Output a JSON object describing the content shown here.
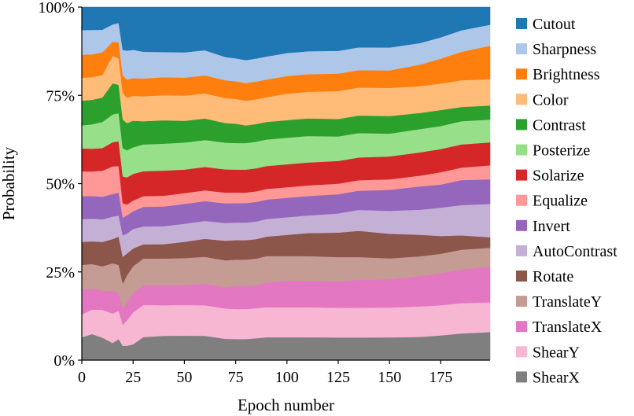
{
  "chart_data": {
    "type": "area",
    "stacked": true,
    "normalized": true,
    "xlabel": "Epoch number",
    "ylabel": "Probability",
    "xlim": [
      0,
      199
    ],
    "ylim": [
      0,
      100
    ],
    "x_ticks": [
      0,
      25,
      50,
      75,
      100,
      125,
      150,
      175
    ],
    "y_ticks": [
      0,
      25,
      50,
      75,
      100
    ],
    "y_tick_labels": [
      "0%",
      "25%",
      "50%",
      "75%",
      "100%"
    ],
    "x": [
      0,
      5,
      10,
      15,
      18,
      20,
      22,
      25,
      30,
      40,
      50,
      60,
      70,
      75,
      80,
      85,
      90,
      100,
      110,
      125,
      135,
      150,
      165,
      175,
      185,
      199
    ],
    "series": [
      {
        "name": "ShearX",
        "color": "#7f7f7f",
        "values": [
          6.5,
          7.5,
          6.5,
          5.0,
          6.0,
          4.0,
          4.0,
          4.5,
          6.5,
          6.8,
          6.8,
          6.8,
          6.0,
          6.0,
          6.0,
          6.2,
          6.5,
          6.5,
          6.5,
          6.5,
          6.5,
          6.5,
          6.5,
          7.0,
          7.5,
          8.0
        ]
      },
      {
        "name": "ShearY",
        "color": "#f7b6d2",
        "values": [
          6.5,
          7.0,
          8.0,
          8.5,
          8.0,
          6.0,
          7.0,
          9.0,
          9.0,
          8.5,
          8.5,
          8.5,
          8.5,
          8.5,
          8.5,
          8.5,
          8.5,
          8.5,
          8.5,
          8.5,
          8.5,
          8.5,
          8.5,
          8.5,
          8.5,
          8.5
        ]
      },
      {
        "name": "TranslateX",
        "color": "#e377c2",
        "values": [
          7.0,
          6.0,
          5.5,
          6.5,
          5.0,
          4.5,
          5.0,
          5.5,
          5.5,
          5.5,
          5.5,
          6.0,
          6.0,
          6.5,
          6.5,
          6.5,
          7.0,
          7.5,
          7.5,
          7.5,
          8.0,
          8.0,
          8.5,
          9.0,
          9.5,
          10.0
        ]
      },
      {
        "name": "TranslateY",
        "color": "#c49c94",
        "values": [
          7.0,
          7.0,
          7.0,
          8.0,
          8.0,
          7.0,
          7.5,
          7.5,
          7.5,
          7.5,
          7.5,
          7.5,
          7.5,
          7.5,
          7.5,
          7.5,
          7.5,
          7.0,
          7.0,
          7.0,
          6.5,
          6.0,
          5.5,
          5.5,
          5.5,
          5.5
        ]
      },
      {
        "name": "Rotate",
        "color": "#8c564b",
        "values": [
          6.5,
          6.5,
          7.0,
          7.0,
          8.0,
          7.5,
          6.0,
          5.0,
          4.0,
          4.0,
          4.5,
          5.0,
          5.5,
          5.5,
          5.5,
          5.5,
          5.5,
          6.0,
          6.5,
          7.0,
          7.5,
          7.0,
          6.0,
          5.0,
          4.0,
          3.0
        ]
      },
      {
        "name": "AutoContrast",
        "color": "#c5b0d5",
        "values": [
          6.5,
          6.5,
          6.5,
          6.5,
          6.0,
          6.0,
          5.5,
          5.5,
          5.0,
          5.0,
          5.0,
          5.0,
          5.0,
          5.0,
          5.0,
          5.0,
          5.0,
          5.0,
          5.0,
          5.5,
          6.0,
          6.5,
          7.0,
          8.0,
          8.5,
          9.5
        ]
      },
      {
        "name": "Invert",
        "color": "#9467bd",
        "values": [
          6.5,
          6.5,
          6.5,
          6.5,
          6.5,
          5.0,
          5.0,
          5.0,
          5.5,
          5.5,
          5.5,
          5.5,
          5.5,
          5.5,
          5.5,
          5.5,
          5.5,
          5.5,
          5.5,
          5.5,
          5.5,
          6.0,
          6.5,
          6.5,
          7.0,
          7.0
        ]
      },
      {
        "name": "Equalize",
        "color": "#ff9896",
        "values": [
          7.0,
          7.0,
          7.5,
          8.0,
          7.5,
          4.0,
          3.0,
          3.0,
          3.0,
          3.0,
          3.0,
          3.0,
          3.0,
          3.0,
          3.0,
          3.0,
          3.0,
          3.0,
          3.0,
          3.0,
          3.0,
          3.0,
          3.0,
          3.5,
          3.5,
          4.0
        ]
      },
      {
        "name": "Solarize",
        "color": "#d62728",
        "values": [
          6.5,
          6.5,
          6.5,
          7.0,
          7.0,
          7.5,
          7.5,
          7.5,
          7.0,
          7.0,
          6.5,
          6.5,
          6.5,
          6.5,
          6.5,
          6.5,
          6.5,
          6.5,
          6.5,
          6.5,
          6.5,
          6.5,
          6.5,
          6.5,
          6.5,
          6.5
        ]
      },
      {
        "name": "Posterize",
        "color": "#98df8a",
        "values": [
          6.5,
          7.0,
          7.5,
          8.0,
          8.0,
          8.0,
          7.5,
          7.5,
          7.5,
          7.5,
          7.5,
          7.5,
          7.5,
          7.5,
          7.5,
          7.5,
          7.5,
          7.5,
          7.5,
          7.0,
          7.0,
          6.5,
          6.5,
          6.5,
          6.5,
          6.5
        ]
      },
      {
        "name": "Contrast",
        "color": "#2ca02c",
        "values": [
          7.0,
          7.0,
          7.0,
          9.0,
          8.0,
          8.0,
          7.5,
          7.5,
          6.5,
          6.5,
          6.0,
          6.0,
          5.5,
          5.5,
          5.0,
          5.0,
          5.0,
          5.0,
          5.0,
          5.0,
          5.0,
          5.0,
          4.5,
          4.5,
          4.0,
          4.0
        ]
      },
      {
        "name": "Color",
        "color": "#ffbb78",
        "values": [
          6.5,
          6.5,
          6.5,
          8.0,
          7.5,
          7.5,
          7.0,
          7.0,
          7.0,
          7.0,
          7.0,
          7.0,
          7.0,
          7.0,
          7.0,
          7.0,
          7.0,
          7.5,
          7.5,
          8.0,
          8.0,
          8.0,
          7.5,
          7.5,
          7.5,
          7.5
        ]
      },
      {
        "name": "Brightness",
        "color": "#ff7f0e",
        "values": [
          6.5,
          6.5,
          6.5,
          4.0,
          4.5,
          5.0,
          5.0,
          5.0,
          5.0,
          5.0,
          5.0,
          5.0,
          5.0,
          5.0,
          5.0,
          5.0,
          5.0,
          5.0,
          5.0,
          5.0,
          5.0,
          5.0,
          6.0,
          7.0,
          8.0,
          9.5
        ]
      },
      {
        "name": "Sharpness",
        "color": "#aec7e8",
        "values": [
          7.0,
          7.0,
          6.5,
          5.0,
          5.5,
          7.0,
          8.0,
          8.0,
          7.5,
          7.0,
          7.0,
          7.0,
          6.5,
          6.5,
          6.5,
          6.5,
          6.5,
          6.5,
          6.5,
          6.5,
          6.5,
          6.5,
          6.0,
          6.0,
          6.0,
          6.0
        ]
      },
      {
        "name": "Cutout",
        "color": "#1f77b4",
        "values": [
          6.5,
          6.5,
          6.5,
          5.0,
          4.5,
          12.0,
          12.0,
          12.0,
          12.5,
          12.5,
          12.5,
          12.0,
          14.0,
          14.5,
          15.0,
          14.5,
          14.0,
          13.0,
          12.5,
          12.5,
          11.5,
          11.5,
          10.0,
          8.5,
          6.5,
          5.0
        ]
      }
    ],
    "legend_order": [
      "Cutout",
      "Sharpness",
      "Brightness",
      "Color",
      "Contrast",
      "Posterize",
      "Solarize",
      "Equalize",
      "Invert",
      "AutoContrast",
      "Rotate",
      "TranslateY",
      "TranslateX",
      "ShearY",
      "ShearX"
    ],
    "legend_position": "right",
    "grid": false
  }
}
